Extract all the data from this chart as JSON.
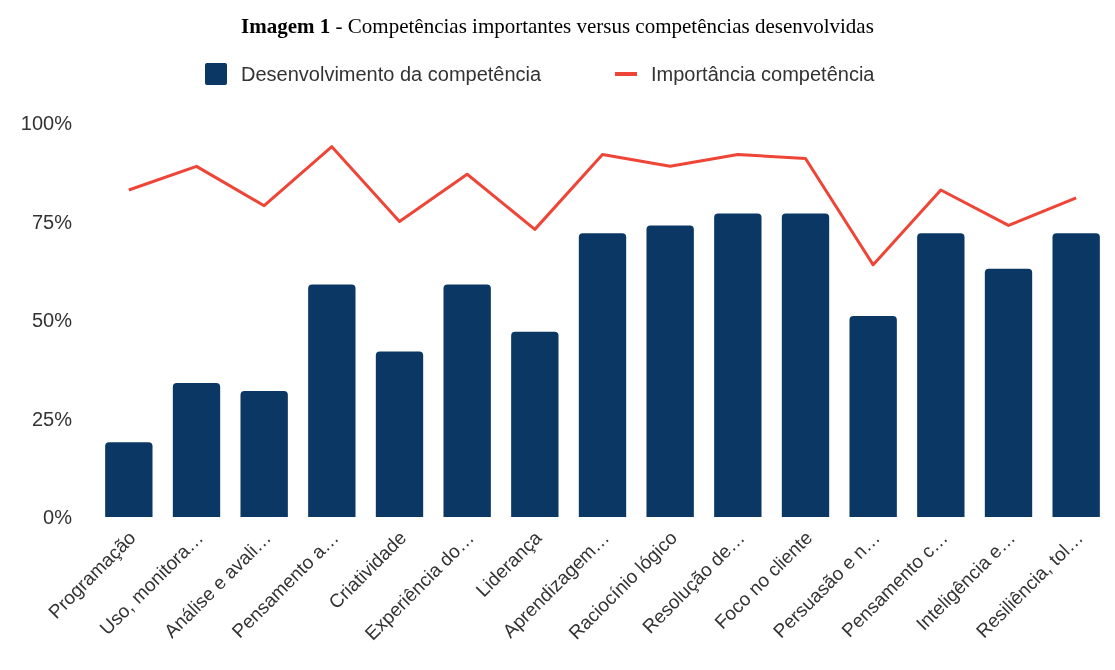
{
  "chart_data": {
    "type": "bar",
    "title": "Imagem 1 - Competências importantes versus competências desenvolvidas",
    "categories": [
      "Programação",
      "Uso, monitora…",
      "Análise e avali…",
      "Pensamento a…",
      "Criatividade",
      "Experiência do…",
      "Liderança",
      "Aprendizagem…",
      "Raciocínio lógico",
      "Resolução de…",
      "Foco no cliente",
      "Persuasão e n…",
      "Pensamento c…",
      "Inteligência e…",
      "Resiliência, tol…"
    ],
    "series": [
      {
        "name": "Desenvolvimento da competência",
        "color": "#0b3764",
        "values": [
          19,
          34,
          32,
          59,
          42,
          59,
          47,
          72,
          74,
          77,
          77,
          51,
          72,
          63,
          72
        ]
      },
      {
        "name": "Importância competência",
        "type": "line",
        "color": "#ee4537",
        "values": [
          83,
          89,
          79,
          94,
          75,
          87,
          73,
          92,
          89,
          92,
          91,
          64,
          83,
          74,
          81
        ]
      }
    ],
    "ylim": [
      0,
      100
    ],
    "yticks": [
      {
        "value": 0,
        "label": "0%"
      },
      {
        "value": 25,
        "label": "25%"
      },
      {
        "value": 50,
        "label": "50%"
      },
      {
        "value": 75,
        "label": "75%"
      },
      {
        "value": 100,
        "label": "100%"
      }
    ],
    "grid": false,
    "legend": "top",
    "marker": "none",
    "line_style": "solid"
  }
}
